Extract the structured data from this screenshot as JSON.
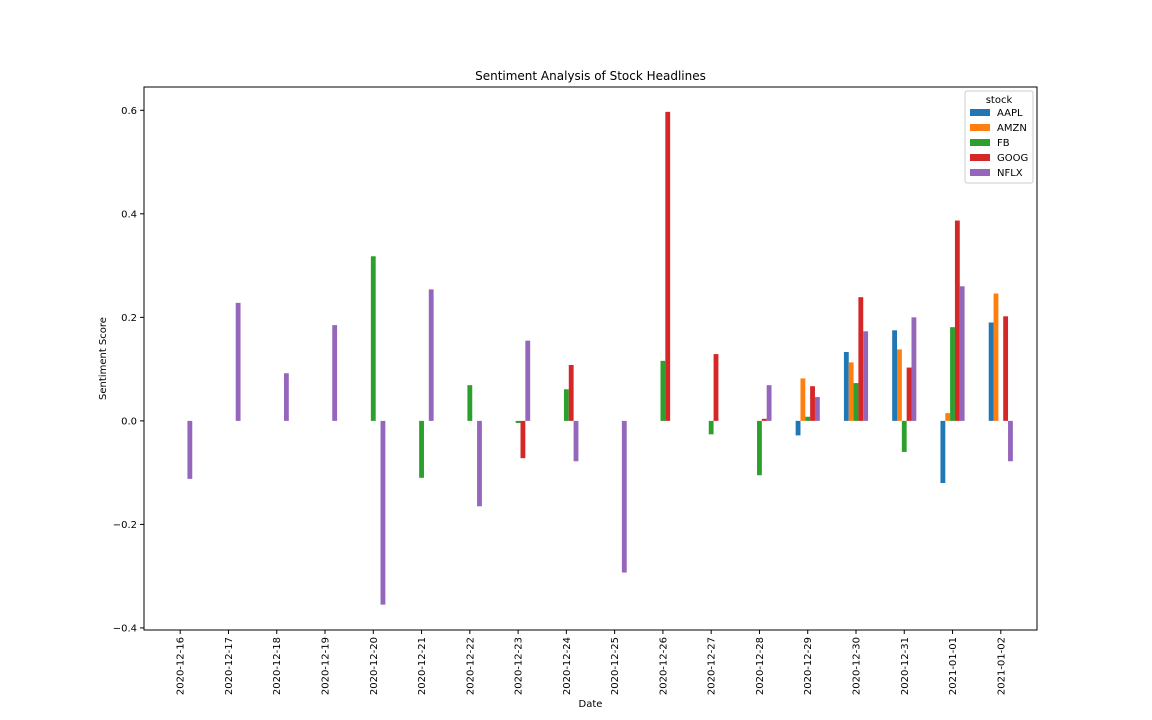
{
  "chart_data": {
    "type": "bar",
    "title": "Sentiment Analysis of Stock Headlines",
    "xlabel": "Date",
    "ylabel": "Sentiment Score",
    "ylim": [
      -0.404,
      0.645
    ],
    "yticks": [
      -0.4,
      -0.2,
      0.0,
      0.2,
      0.4,
      0.6
    ],
    "ytick_labels": [
      "−0.4",
      "−0.2",
      "0.0",
      "0.2",
      "0.4",
      "0.6"
    ],
    "grid": false,
    "legend": {
      "title": "stock",
      "placement": "top-right"
    },
    "categories": [
      "2020-12-16",
      "2020-12-17",
      "2020-12-18",
      "2020-12-19",
      "2020-12-20",
      "2020-12-21",
      "2020-12-22",
      "2020-12-23",
      "2020-12-24",
      "2020-12-25",
      "2020-12-26",
      "2020-12-27",
      "2020-12-28",
      "2020-12-29",
      "2020-12-30",
      "2020-12-31",
      "2021-01-01",
      "2021-01-02"
    ],
    "series": [
      {
        "name": "AAPL",
        "color": "#1f77b4",
        "values": [
          null,
          null,
          null,
          null,
          null,
          null,
          null,
          null,
          null,
          null,
          null,
          null,
          null,
          -0.028,
          0.133,
          0.175,
          -0.12,
          0.19
        ]
      },
      {
        "name": "AMZN",
        "color": "#ff7f0e",
        "values": [
          null,
          null,
          null,
          null,
          null,
          null,
          null,
          null,
          null,
          null,
          null,
          null,
          null,
          0.082,
          0.113,
          0.138,
          0.015,
          0.246
        ]
      },
      {
        "name": "FB",
        "color": "#2ca02c",
        "values": [
          null,
          null,
          null,
          null,
          0.318,
          -0.11,
          0.069,
          -0.004,
          0.061,
          null,
          0.116,
          -0.026,
          -0.105,
          0.008,
          0.073,
          -0.06,
          0.181,
          null
        ]
      },
      {
        "name": "GOOG",
        "color": "#d62728",
        "values": [
          null,
          null,
          null,
          null,
          null,
          null,
          null,
          -0.072,
          0.108,
          null,
          0.597,
          0.129,
          0.004,
          0.067,
          0.239,
          0.103,
          0.387,
          0.202
        ]
      },
      {
        "name": "NFLX",
        "color": "#9467bd",
        "values": [
          -0.112,
          0.228,
          0.092,
          0.185,
          -0.355,
          0.254,
          -0.165,
          0.155,
          -0.078,
          -0.293,
          null,
          null,
          0.069,
          0.046,
          0.173,
          0.2,
          0.26,
          -0.078
        ]
      }
    ]
  }
}
